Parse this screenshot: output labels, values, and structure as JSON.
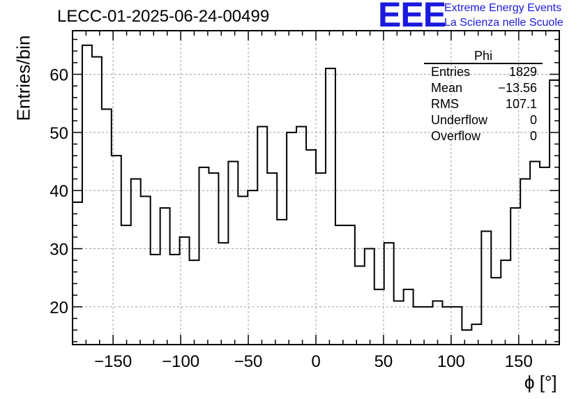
{
  "chart_data": {
    "type": "histogram",
    "title": "LECC-01-2025-06-24-00499",
    "xlabel": "ϕ [°]",
    "ylabel": "Entries/bin",
    "xlim": [
      -180,
      180
    ],
    "ylim": [
      13.5,
      67.5
    ],
    "bin_width": 7.2,
    "xticks": [
      -150,
      -100,
      -50,
      0,
      50,
      100,
      150
    ],
    "xtick_labels": [
      "−150",
      "−100",
      "−50",
      "0",
      "50",
      "100",
      "150"
    ],
    "yticks": [
      20,
      30,
      40,
      50,
      60
    ],
    "grid": true,
    "bin_edges_start": -180,
    "values": [
      38,
      65,
      63,
      54,
      46,
      34,
      42,
      39,
      29,
      37,
      29,
      32,
      28,
      44,
      43,
      31,
      45,
      39,
      40,
      51,
      43,
      35,
      50,
      51,
      47,
      43,
      61,
      34,
      34,
      27,
      30,
      23,
      31,
      21,
      23,
      20,
      20,
      21,
      20,
      20,
      16,
      17,
      33,
      25,
      28,
      37,
      42,
      45,
      44,
      59
    ],
    "line_color": "#000000",
    "grid_color": "#a0a0a0"
  },
  "stats_box": {
    "name": "Phi",
    "rows": [
      {
        "label": "Entries",
        "value": "1829"
      },
      {
        "label": "Mean",
        "value": "−13.56"
      },
      {
        "label": "RMS",
        "value": "107.1"
      },
      {
        "label": "Underflow",
        "value": "0"
      },
      {
        "label": "Overflow",
        "value": "0"
      }
    ]
  },
  "logo": {
    "mark": "EEE",
    "line1": "Extreme Energy Events",
    "line2": "La Scienza nelle Scuole",
    "color": "#1a1adc"
  }
}
